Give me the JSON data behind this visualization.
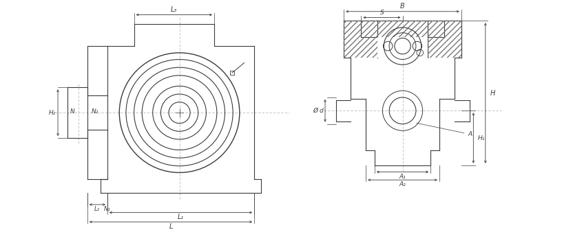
{
  "bg_color": "#ffffff",
  "line_color": "#3a3a3a",
  "dim_color": "#3a3a3a",
  "centerline_color": "#aaaaaa",
  "fig_width": 8.16,
  "fig_height": 3.38,
  "dpi": 100,
  "labels": {
    "L3": "L₃",
    "H2": "H₂",
    "N": "N",
    "N2": "N₂",
    "N1": "N₁",
    "L2": "L₂",
    "L1": "L₁",
    "L": "L",
    "B": "B",
    "S": "S",
    "d": "Ø d",
    "H1": "H₁",
    "H": "H",
    "A": "A",
    "A1": "A₁",
    "A2": "A₂"
  }
}
